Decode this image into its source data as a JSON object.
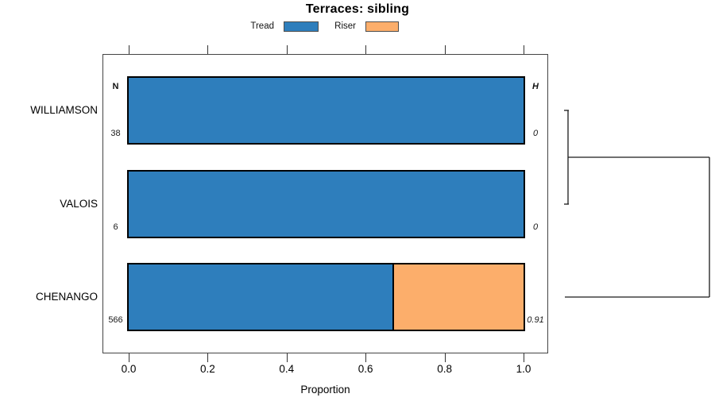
{
  "title": "Terraces: sibling",
  "colors": {
    "tread": "#2E7EBC",
    "riser": "#FCAE6B",
    "bar_border": "#000000",
    "line": "#1a1a1a"
  },
  "legend": {
    "items": [
      {
        "label": "Tread",
        "color_key": "tread"
      },
      {
        "label": "Riser",
        "color_key": "riser"
      }
    ]
  },
  "columns": {
    "n_header": "N",
    "h_header": "H"
  },
  "axis": {
    "label": "Proportion",
    "tick_labels": [
      "0.0",
      "0.2",
      "0.4",
      "0.6",
      "0.8",
      "1.0"
    ],
    "tick_values": [
      0,
      0.2,
      0.4,
      0.6,
      0.8,
      1.0
    ]
  },
  "chart_data": {
    "type": "bar",
    "orientation": "horizontal",
    "stacked": true,
    "title": "Terraces: sibling",
    "xlabel": "Proportion",
    "xlim": [
      0,
      1
    ],
    "grid": false,
    "legend_position": "top",
    "categories": [
      "WILLIAMSON",
      "VALOIS",
      "CHENANGO"
    ],
    "n_values": [
      "38",
      "6",
      "566"
    ],
    "h_values": [
      "0",
      "0",
      "0.91"
    ],
    "series": [
      {
        "name": "Tread",
        "color": "#2E7EBC",
        "values": [
          1.0,
          1.0,
          0.67
        ]
      },
      {
        "name": "Riser",
        "color": "#FCAE6B",
        "values": [
          0.0,
          0.0,
          0.33
        ]
      }
    ],
    "dendrogram": {
      "position": "right",
      "max_height": 0.91,
      "joins": [
        {
          "members": [
            "WILLIAMSON",
            "VALOIS"
          ],
          "height": 0
        },
        {
          "members": [
            "WILLIAMSON+VALOIS",
            "CHENANGO"
          ],
          "height": 0.91
        }
      ]
    }
  }
}
